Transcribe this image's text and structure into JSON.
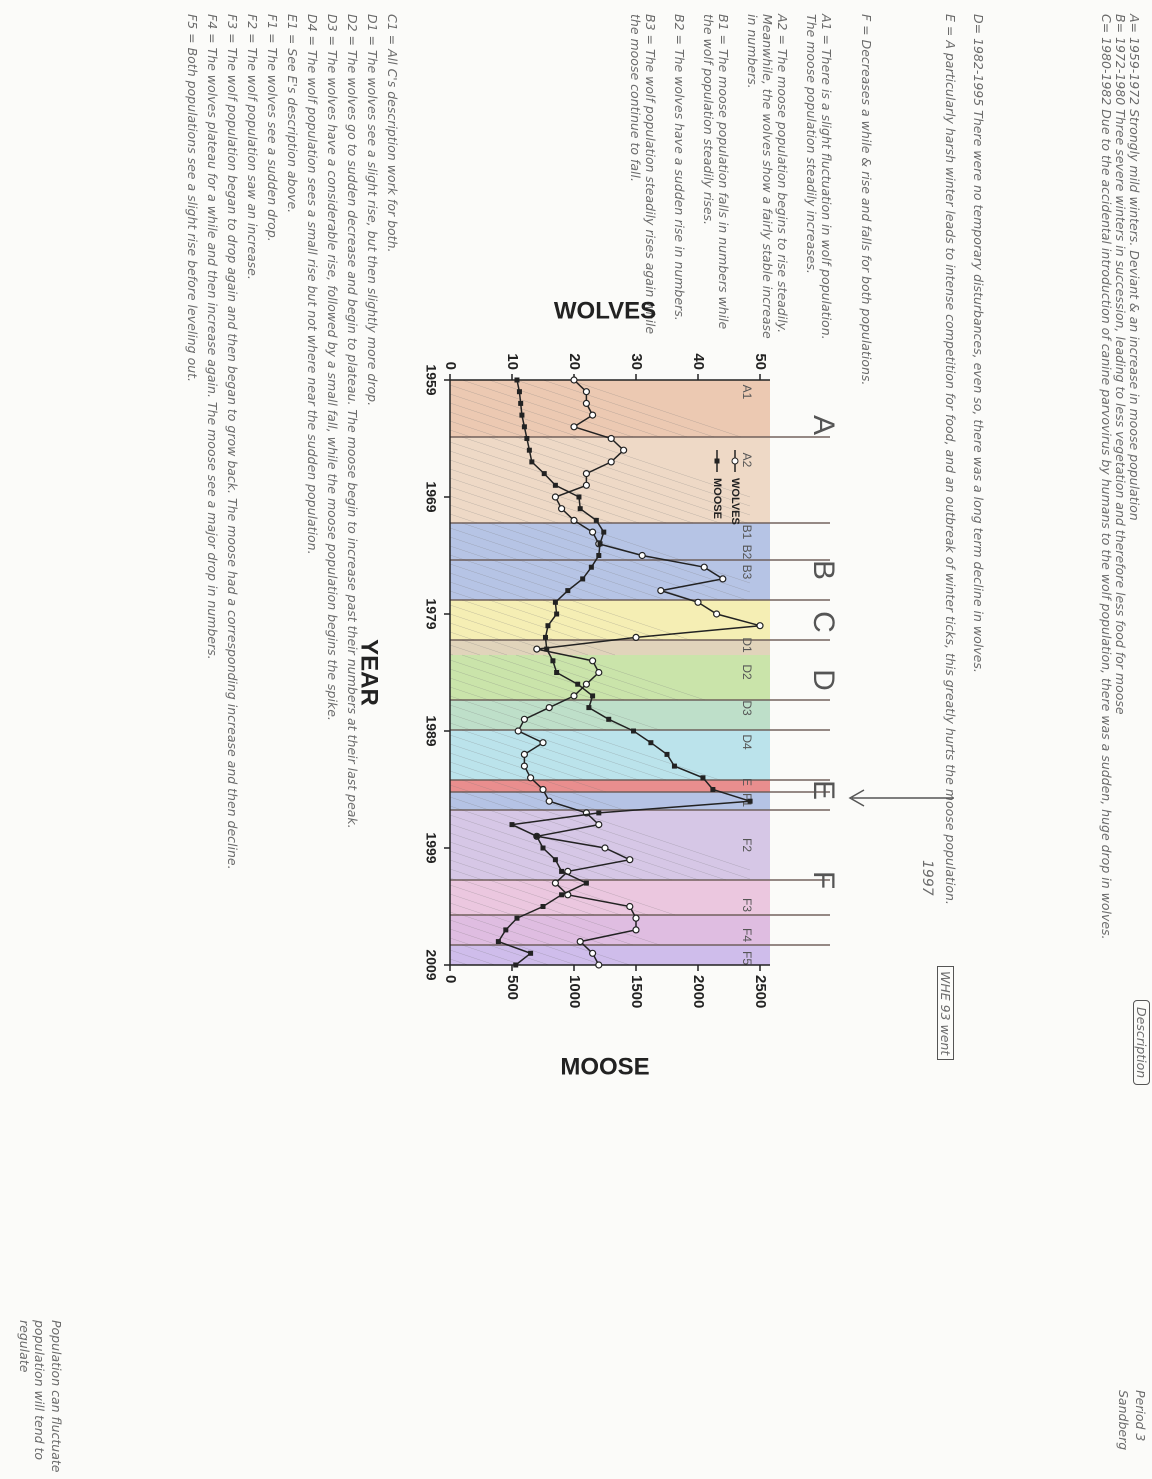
{
  "notes": {
    "heading": "Description",
    "corner": [
      "Period 3",
      "Sandberg"
    ],
    "periods": [
      "A= 1959-1972 Strongly mild winters. Deviant & an increase in moose population",
      "B= 1972-1980 Three severe winters in succession, leading to less vegetation and therefore less food for moose",
      "C= 1980-1982 Due to the accidental introduction of canine parvovirus by humans to the wolf population, there was a sudden, huge drop in wolves.",
      "D= 1982-1995 There were no temporary disturbances, even so, there was a long term decline in wolves.",
      "E = A particularly harsh winter leads to intense competition for food, and an outbreak of winter ticks, this greatly hurts the moose population.",
      "F = Decreases a while & rise and falls for both populations."
    ],
    "boxed": "WHE 93 went",
    "arrow_label": "1997",
    "left_details": [
      "A1 = There is a slight fluctuation in wolf population. The moose population steadily increases.",
      "A2 = The moose population begins to rise steadily. Meanwhile, the wolves show a fairly stable increase in numbers.",
      "B1 = The moose population falls in numbers while the wolf population steadily rises.",
      "B2 = The wolves have a sudden rise in numbers.",
      "B3 = The wolf population steadily rises again while the moose continue to fall."
    ],
    "bottom_details": [
      "C1 = All C's description work for both.",
      "D1 = The wolves see a slight rise, but then slightly more drop.",
      "D2 = The wolves go to sudden decrease and begin to plateau. The moose begin to increase past their numbers at their last peak.",
      "D3 = The wolves have a considerable rise, followed by a small fall, while the moose population begins the spike.",
      "D4 = The wolf population sees a small rise but not where near the sudden population.",
      "E1 = See E's description above.",
      "F1 = The wolves see a sudden drop.",
      "F2 = The wolf population saw an increase.",
      "F3 = The wolf population began to drop again and then began to grow back. The moose had a corresponding increase and then decline.",
      "F4 = The wolves plateau for a while and then increase again. The moose see a major drop in numbers.",
      "F5 = Both populations see a slight rise before leveling out."
    ],
    "conclusion": [
      "Population can fluctuate",
      "population will tend to regulate"
    ]
  },
  "chart_data": {
    "type": "line",
    "x_label": "YEAR",
    "y_label": "WOLVES",
    "y2_label": "MOOSE",
    "period_labels": [
      "A",
      "B",
      "C",
      "D",
      "E",
      "F"
    ],
    "sub_period_labels": [
      "A1",
      "A2",
      "B1",
      "B2",
      "B3",
      "D1",
      "D2",
      "D3",
      "D4",
      "E",
      "F1",
      "F2",
      "F3",
      "F4",
      "F5"
    ],
    "x": [
      1959,
      1960,
      1961,
      1962,
      1963,
      1964,
      1965,
      1966,
      1967,
      1968,
      1969,
      1970,
      1971,
      1972,
      1973,
      1974,
      1975,
      1976,
      1977,
      1978,
      1979,
      1980,
      1981,
      1982,
      1983,
      1984,
      1985,
      1986,
      1987,
      1988,
      1989,
      1990,
      1991,
      1992,
      1993,
      1994,
      1995,
      1996,
      1997,
      1998,
      1999,
      2000,
      2001,
      2002,
      2003,
      2004,
      2005,
      2006,
      2007,
      2008,
      2009
    ],
    "xlim": [
      1959,
      2009
    ],
    "xticks": [
      1959,
      1969,
      1979,
      1989,
      1999,
      2009
    ],
    "ylim": [
      0,
      50
    ],
    "yticks": [
      0,
      10,
      20,
      30,
      40,
      50
    ],
    "y2lim": [
      0,
      2500
    ],
    "y2ticks": [
      0,
      500,
      1000,
      1500,
      2000,
      2500
    ],
    "series": [
      {
        "name": "WOLVES",
        "color": "#222222",
        "marker": "open-circle",
        "values": [
          20,
          22,
          22,
          23,
          20,
          26,
          28,
          26,
          22,
          22,
          17,
          18,
          20,
          23,
          24,
          31,
          41,
          44,
          34,
          40,
          43,
          50,
          30,
          14,
          23,
          24,
          22,
          20,
          16,
          12,
          11,
          15,
          12,
          12,
          13,
          15,
          16,
          22,
          24,
          14,
          25,
          29,
          19,
          17,
          19,
          29,
          30,
          30,
          21,
          23,
          24
        ]
      },
      {
        "name": "MOOSE",
        "color": "#222222",
        "marker": "filled-square",
        "axis": "y2",
        "values": [
          540,
          560,
          570,
          580,
          600,
          620,
          640,
          660,
          760,
          850,
          1040,
          1050,
          1180,
          1240,
          1210,
          1200,
          1140,
          1070,
          950,
          850,
          860,
          790,
          770,
          780,
          830,
          860,
          1030,
          1150,
          1120,
          1280,
          1480,
          1620,
          1750,
          1810,
          2040,
          2120,
          2420,
          1200,
          500,
          700,
          750,
          850,
          900,
          1100,
          900,
          750,
          540,
          450,
          390,
          650,
          530
        ]
      }
    ],
    "grid": false,
    "legend": "upper-left"
  }
}
